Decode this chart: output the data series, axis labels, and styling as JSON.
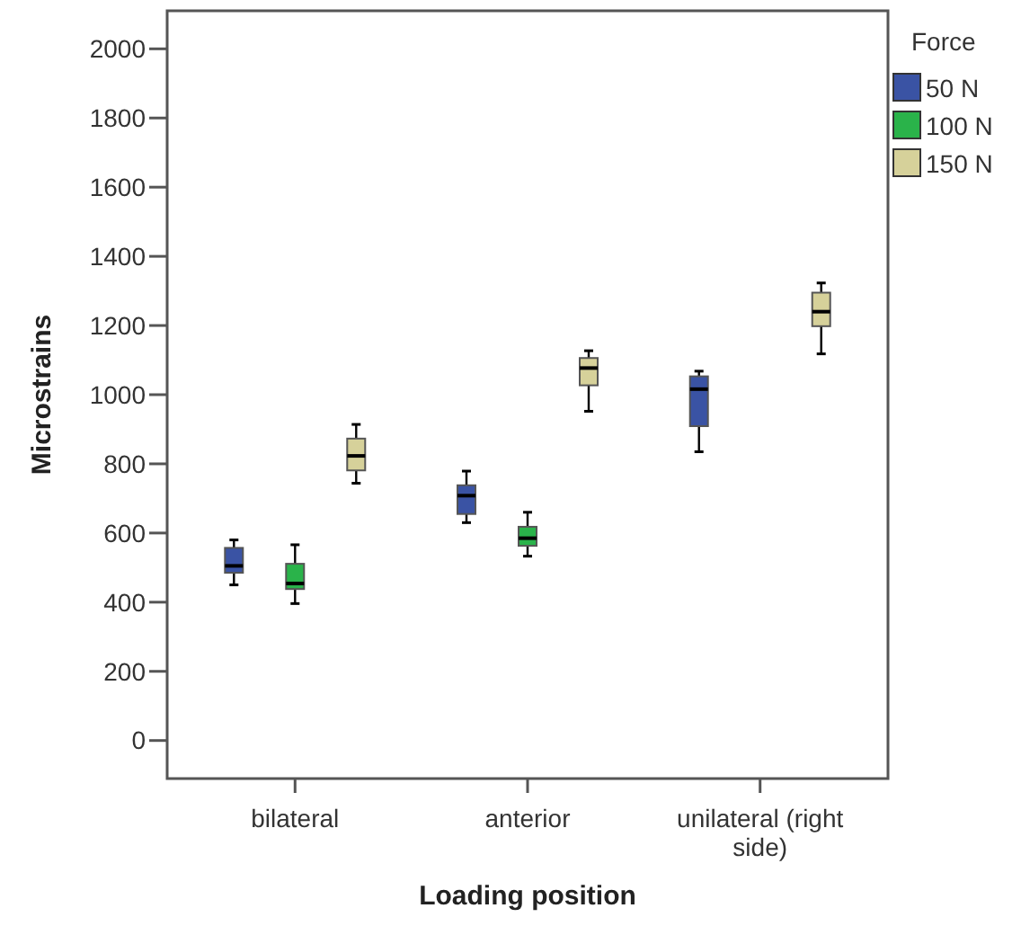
{
  "chart_data": {
    "type": "box",
    "xlabel": "Loading position",
    "ylabel": "Microstrains",
    "legend_title": "Force",
    "legend": "right",
    "grid": false,
    "categories": [
      "bilateral",
      "anterior",
      "unilateral (right side)"
    ],
    "ylim": [
      -110,
      2110
    ],
    "yticks": [
      0,
      200,
      400,
      600,
      800,
      1000,
      1200,
      1400,
      1600,
      1800,
      2000
    ],
    "series": [
      {
        "name": "50 N",
        "color": "#3a53a4",
        "boxes": [
          {
            "low": 450,
            "q1": 485,
            "median": 505,
            "q3": 557,
            "high": 580
          },
          {
            "low": 630,
            "q1": 655,
            "median": 708,
            "q3": 738,
            "high": 779
          },
          {
            "low": 835,
            "q1": 909,
            "median": 1016,
            "q3": 1053,
            "high": 1068
          }
        ]
      },
      {
        "name": "100 N",
        "color": "#2ab34a",
        "boxes": [
          {
            "low": 396,
            "q1": 438,
            "median": 454,
            "q3": 511,
            "high": 566
          },
          {
            "low": 533,
            "q1": 563,
            "median": 585,
            "q3": 618,
            "high": 660
          },
          null
        ]
      },
      {
        "name": "150 N",
        "color": "#d6d19a",
        "boxes": [
          {
            "low": 744,
            "q1": 781,
            "median": 823,
            "q3": 873,
            "high": 914
          },
          {
            "low": 952,
            "q1": 1027,
            "median": 1077,
            "q3": 1106,
            "high": 1127
          },
          {
            "low": 1118,
            "q1": 1198,
            "median": 1240,
            "q3": 1295,
            "high": 1323
          }
        ]
      }
    ]
  }
}
